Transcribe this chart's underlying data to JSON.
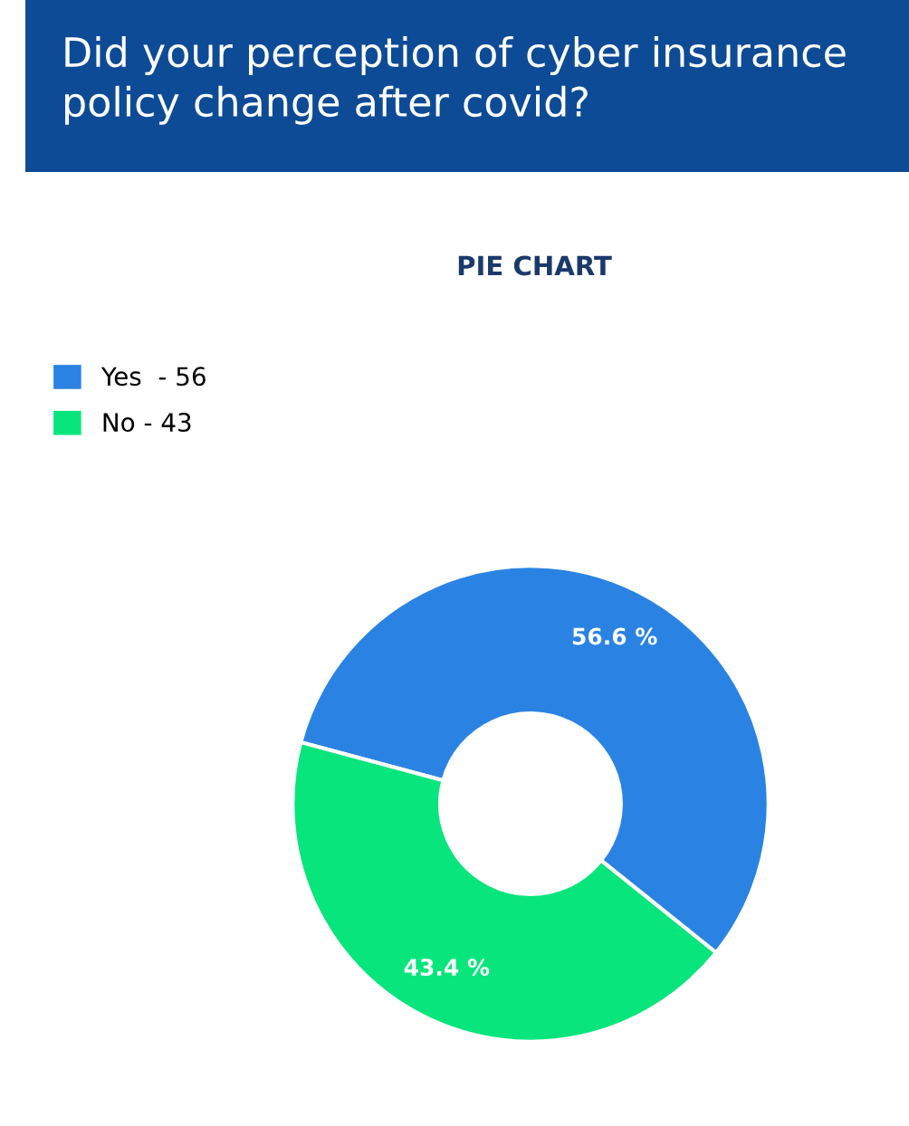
{
  "chart_data": {
    "type": "donut",
    "title": "Did your perception of cyber insurance policy change after covid?",
    "subtitle": "PIE CHART",
    "categories": [
      "Yes  - 56",
      "No - 43"
    ],
    "values": [
      56.6,
      43.4
    ],
    "colors": [
      "#2a83e3",
      "#08e57c"
    ],
    "value_labels": [
      "56.6 %",
      "43.4 %"
    ],
    "legend": "top left"
  }
}
